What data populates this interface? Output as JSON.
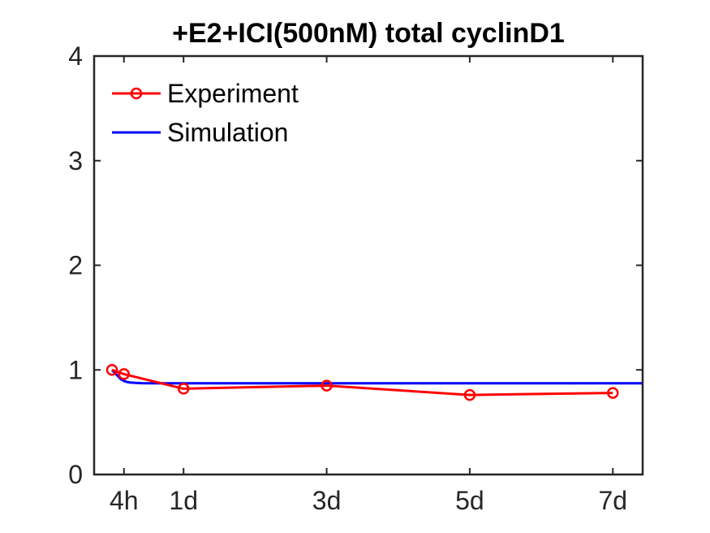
{
  "chart_data": {
    "type": "line",
    "title": "+E2+ICI(500nM) total cyclinD1",
    "xlabel": "",
    "ylabel": "",
    "xlim": [
      -6,
      178
    ],
    "ylim": [
      0,
      4
    ],
    "x_ticks": [
      {
        "value": 4,
        "label": "4h"
      },
      {
        "value": 24,
        "label": "1d"
      },
      {
        "value": 72,
        "label": "3d"
      },
      {
        "value": 120,
        "label": "5d"
      },
      {
        "value": 168,
        "label": "7d"
      }
    ],
    "y_ticks": [
      {
        "value": 0,
        "label": "0"
      },
      {
        "value": 1,
        "label": "1"
      },
      {
        "value": 2,
        "label": "2"
      },
      {
        "value": 3,
        "label": "3"
      },
      {
        "value": 4,
        "label": "4"
      }
    ],
    "grid": false,
    "legend": "top-left",
    "series": [
      {
        "name": "Experiment",
        "color": "#ff0000",
        "marker": "circle",
        "x": [
          0,
          4,
          24,
          72,
          120,
          168
        ],
        "y": [
          1.0,
          0.96,
          0.82,
          0.85,
          0.76,
          0.78
        ]
      },
      {
        "name": "Simulation",
        "color": "#0000ff",
        "marker": "none",
        "x": [
          0,
          1,
          2,
          3,
          4,
          5,
          6,
          8,
          10,
          14,
          20,
          30,
          50,
          80,
          120,
          178
        ],
        "y": [
          1.0,
          0.97,
          0.94,
          0.91,
          0.895,
          0.885,
          0.88,
          0.875,
          0.873,
          0.872,
          0.872,
          0.872,
          0.872,
          0.872,
          0.872,
          0.872
        ]
      }
    ]
  }
}
